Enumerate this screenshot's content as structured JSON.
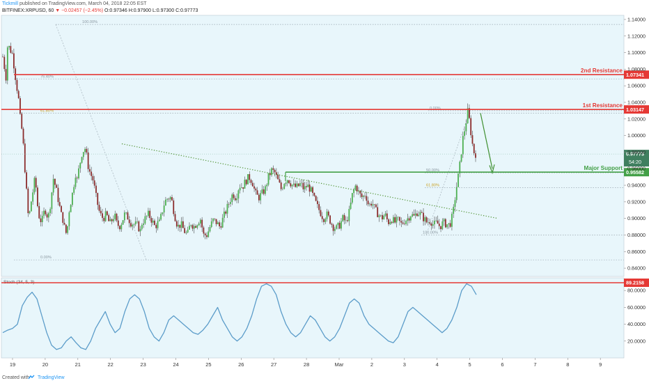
{
  "header": {
    "publisher": "Tickmill",
    "published_text": "published on TradingView.com, March 04, 2018 22:05 EST",
    "symbol": "BITFINEX:XRPUSD, 60",
    "change_arrow": "▼",
    "change_text": "−0.02457 (−2.45%)",
    "ohlc_o": "O:0.97346",
    "ohlc_h": "H:0.97900",
    "ohlc_l": "L:0.97300",
    "ohlc_c": "C:0.97773"
  },
  "footer": {
    "created_with": "Created with",
    "brand": "TradingView"
  },
  "chart_data": {
    "type": "candlestick",
    "symbol": "BITFINEX:XRPUSD",
    "interval": "60",
    "price_axis": {
      "ylim": [
        0.83,
        1.145
      ],
      "ticks": [
        "1.14000",
        "1.12000",
        "1.10000",
        "1.08000",
        "1.06000",
        "1.04000",
        "1.02000",
        "1.00000",
        "0.98000",
        "0.96000",
        "0.94000",
        "0.92000",
        "0.90000",
        "0.88000",
        "0.86000",
        "0.84000"
      ]
    },
    "x_axis": {
      "ticks": [
        "19",
        "20",
        "21",
        "22",
        "23",
        "24",
        "25",
        "26",
        "27",
        "28",
        "Mar",
        "2",
        "3",
        "4",
        "5",
        "6",
        "7",
        "8",
        "9"
      ]
    },
    "price_path": [
      [
        0,
        1.095
      ],
      [
        2,
        1.07
      ],
      [
        3,
        1.11
      ],
      [
        6,
        1.098
      ],
      [
        8,
        1.068
      ],
      [
        10,
        1.04
      ],
      [
        11,
        1.015
      ],
      [
        12,
        1.005
      ],
      [
        13,
        0.98
      ],
      [
        14,
        0.95
      ],
      [
        16,
        0.895
      ],
      [
        17,
        0.915
      ],
      [
        18,
        0.925
      ],
      [
        19,
        0.938
      ],
      [
        20,
        0.95
      ],
      [
        21,
        0.925
      ],
      [
        22,
        0.905
      ],
      [
        24,
        0.895
      ],
      [
        26,
        0.912
      ],
      [
        28,
        0.9
      ],
      [
        30,
        0.925
      ],
      [
        31,
        0.95
      ],
      [
        33,
        0.935
      ],
      [
        34,
        0.925
      ],
      [
        35,
        0.915
      ],
      [
        36,
        0.905
      ],
      [
        37,
        0.9
      ],
      [
        38,
        0.89
      ],
      [
        39,
        0.882
      ],
      [
        40,
        0.89
      ],
      [
        41,
        0.91
      ],
      [
        42,
        0.92
      ],
      [
        43,
        0.93
      ],
      [
        45,
        0.955
      ],
      [
        46,
        0.945
      ],
      [
        47,
        0.96
      ],
      [
        49,
        0.98
      ],
      [
        51,
        0.985
      ],
      [
        53,
        0.96
      ],
      [
        55,
        0.95
      ],
      [
        56,
        0.945
      ],
      [
        57,
        0.932
      ],
      [
        58,
        0.922
      ],
      [
        60,
        0.905
      ],
      [
        62,
        0.9
      ],
      [
        64,
        0.905
      ],
      [
        66,
        0.893
      ],
      [
        68,
        0.9
      ],
      [
        69,
        0.905
      ],
      [
        70,
        0.895
      ],
      [
        72,
        0.89
      ],
      [
        74,
        0.898
      ],
      [
        75,
        0.905
      ],
      [
        77,
        0.902
      ],
      [
        79,
        0.895
      ],
      [
        81,
        0.893
      ],
      [
        83,
        0.892
      ],
      [
        85,
        0.885
      ],
      [
        86,
        0.895
      ],
      [
        88,
        0.9
      ],
      [
        90,
        0.905
      ],
      [
        92,
        0.898
      ],
      [
        94,
        0.89
      ],
      [
        96,
        0.895
      ],
      [
        97,
        0.895
      ],
      [
        98,
        0.905
      ],
      [
        100,
        0.92
      ],
      [
        102,
        0.925
      ],
      [
        104,
        0.925
      ],
      [
        106,
        0.905
      ],
      [
        108,
        0.89
      ],
      [
        110,
        0.893
      ],
      [
        112,
        0.885
      ],
      [
        114,
        0.88
      ],
      [
        116,
        0.895
      ],
      [
        118,
        0.89
      ],
      [
        120,
        0.895
      ],
      [
        122,
        0.9
      ],
      [
        124,
        0.88
      ],
      [
        126,
        0.88
      ],
      [
        128,
        0.89
      ],
      [
        130,
        0.898
      ],
      [
        132,
        0.895
      ],
      [
        134,
        0.89
      ],
      [
        136,
        0.9
      ],
      [
        138,
        0.91
      ],
      [
        140,
        0.92
      ],
      [
        142,
        0.93
      ],
      [
        144,
        0.925
      ],
      [
        146,
        0.94
      ],
      [
        148,
        0.938
      ],
      [
        150,
        0.945
      ],
      [
        152,
        0.95
      ],
      [
        154,
        0.945
      ],
      [
        156,
        0.93
      ],
      [
        158,
        0.925
      ],
      [
        160,
        0.93
      ],
      [
        162,
        0.935
      ],
      [
        164,
        0.95
      ],
      [
        166,
        0.958
      ],
      [
        168,
        0.955
      ],
      [
        170,
        0.945
      ],
      [
        172,
        0.935
      ],
      [
        174,
        0.945
      ],
      [
        176,
        0.948
      ],
      [
        178,
        0.942
      ],
      [
        180,
        0.938
      ],
      [
        182,
        0.938
      ],
      [
        184,
        0.942
      ],
      [
        186,
        0.935
      ],
      [
        188,
        0.94
      ],
      [
        190,
        0.935
      ],
      [
        192,
        0.925
      ],
      [
        194,
        0.915
      ],
      [
        196,
        0.908
      ],
      [
        198,
        0.9
      ],
      [
        200,
        0.905
      ],
      [
        202,
        0.898
      ],
      [
        204,
        0.89
      ],
      [
        206,
        0.888
      ],
      [
        208,
        0.892
      ],
      [
        210,
        0.9
      ],
      [
        212,
        0.895
      ],
      [
        214,
        0.908
      ],
      [
        216,
        0.93
      ],
      [
        218,
        0.94
      ],
      [
        220,
        0.93
      ],
      [
        222,
        0.925
      ],
      [
        224,
        0.93
      ],
      [
        226,
        0.915
      ],
      [
        228,
        0.92
      ],
      [
        230,
        0.91
      ],
      [
        232,
        0.905
      ],
      [
        234,
        0.9
      ],
      [
        236,
        0.905
      ],
      [
        238,
        0.895
      ],
      [
        240,
        0.9
      ],
      [
        242,
        0.895
      ],
      [
        244,
        0.898
      ],
      [
        246,
        0.893
      ],
      [
        248,
        0.897
      ],
      [
        250,
        0.9
      ],
      [
        252,
        0.905
      ],
      [
        254,
        0.902
      ],
      [
        256,
        0.908
      ],
      [
        258,
        0.905
      ],
      [
        260,
        0.9
      ],
      [
        262,
        0.895
      ],
      [
        264,
        0.898
      ],
      [
        266,
        0.892
      ],
      [
        268,
        0.895
      ],
      [
        270,
        0.89
      ],
      [
        272,
        0.895
      ],
      [
        274,
        0.893
      ],
      [
        276,
        0.892
      ],
      [
        278,
        0.905
      ],
      [
        280,
        0.935
      ],
      [
        282,
        0.96
      ],
      [
        284,
        0.995
      ],
      [
        286,
        1.015
      ],
      [
        287,
        1.03
      ],
      [
        288,
        1.02
      ],
      [
        289,
        1.005
      ],
      [
        290,
        0.99
      ],
      [
        291,
        0.98
      ],
      [
        292,
        0.978
      ]
    ],
    "annotations": [
      {
        "label": "2nd Resistance",
        "value": "1.07341",
        "price": 1.07341,
        "color": "#e53935"
      },
      {
        "label": "1st Resistance",
        "value": "1.03147",
        "price": 1.03147,
        "color": "#e53935"
      },
      {
        "label": "Major Support",
        "value": "0.95582",
        "price": 0.95582,
        "color": "#43a047"
      }
    ],
    "last_price": {
      "value": "0.97773",
      "countdown": "54:20",
      "price": 0.97773
    },
    "fibonacci": [
      {
        "label": "100.00%",
        "price": 1.134
      },
      {
        "label": "76.40%",
        "price": 1.068
      },
      {
        "label": "61.80%",
        "price": 1.027
      },
      {
        "label": "0.00%",
        "price": 0.85
      },
      {
        "label": "0.00%",
        "price": 1.03
      },
      {
        "label": "50.00%",
        "price": 0.955
      },
      {
        "label": "61.80%",
        "price": 0.937
      },
      {
        "label": "100.00%",
        "price": 0.88
      }
    ],
    "trendline": {
      "style": "dotted",
      "color": "#43a047",
      "from": [
        0.99,
        "22"
      ],
      "to": [
        0.9,
        "5"
      ]
    },
    "stochastic": {
      "name": "Stoch (34, 5, 3)",
      "ylim": [
        0,
        95
      ],
      "ticks": [
        "80.0000",
        "60.0000",
        "40.0000",
        "20.0000"
      ],
      "marker": {
        "value": "89.2158",
        "level": 89.2158,
        "color": "#e53935"
      },
      "values": [
        30,
        33,
        35,
        40,
        62,
        72,
        78,
        70,
        50,
        30,
        15,
        10,
        12,
        20,
        25,
        18,
        12,
        10,
        20,
        35,
        45,
        55,
        40,
        30,
        35,
        55,
        70,
        75,
        70,
        55,
        35,
        25,
        20,
        30,
        45,
        50,
        45,
        40,
        35,
        30,
        28,
        33,
        40,
        50,
        60,
        45,
        35,
        25,
        20,
        25,
        35,
        50,
        70,
        85,
        88,
        85,
        75,
        55,
        40,
        30,
        25,
        30,
        40,
        50,
        45,
        35,
        25,
        20,
        25,
        35,
        50,
        65,
        70,
        65,
        50,
        40,
        35,
        30,
        25,
        20,
        18,
        25,
        40,
        55,
        60,
        55,
        50,
        45,
        40,
        35,
        30,
        35,
        45,
        60,
        80,
        88,
        85,
        75
      ]
    }
  }
}
